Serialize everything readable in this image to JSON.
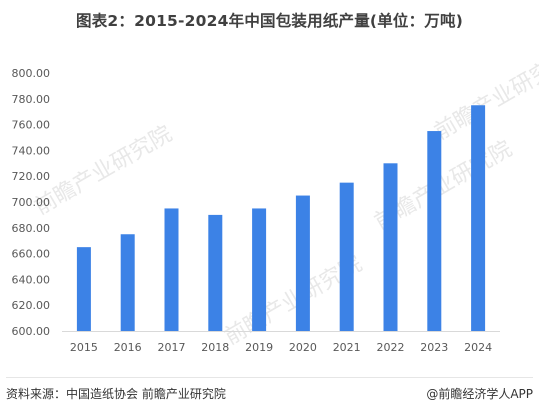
{
  "header": {
    "title": "图表2：2015-2024年中国包装用纸产量(单位：万吨)"
  },
  "footer": {
    "source": "资料来源：中国造纸协会 前瞻产业研究院",
    "brand": "@前瞻经济学人APP"
  },
  "watermark": {
    "text": "前瞻产业研究院"
  },
  "colors": {
    "bar": "#3c82e6",
    "axis_text": "#595959",
    "gridline": "#e0e0e0",
    "watermark": "#e8e8e8"
  },
  "chart_data": {
    "type": "bar",
    "title": "图表2：2015-2024年中国包装用纸产量(单位：万吨)",
    "xlabel": "",
    "ylabel": "",
    "categories": [
      "2015",
      "2016",
      "2017",
      "2018",
      "2019",
      "2020",
      "2021",
      "2022",
      "2023",
      "2024"
    ],
    "values": [
      665,
      675,
      695,
      690,
      695,
      705,
      715,
      730,
      755,
      775
    ],
    "ylim": [
      600,
      800
    ],
    "yticks": [
      "600.00",
      "620.00",
      "640.00",
      "660.00",
      "680.00",
      "700.00",
      "720.00",
      "740.00",
      "760.00",
      "780.00",
      "800.00"
    ],
    "grid": false,
    "legend": "none"
  }
}
